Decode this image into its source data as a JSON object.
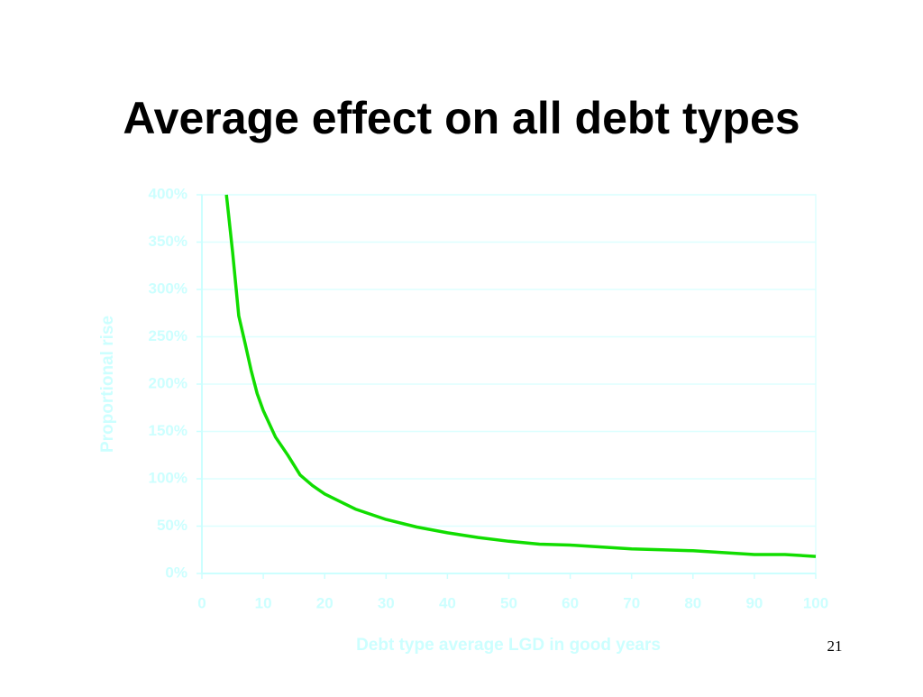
{
  "chart_data": {
    "type": "line",
    "title": "Average effect on all debt types",
    "x_label": "Debt type average LGD in good years",
    "y_label": "Proportional rise",
    "x": [
      4,
      5,
      6,
      7,
      8,
      9,
      10,
      12,
      14,
      16,
      18,
      20,
      25,
      30,
      35,
      40,
      45,
      50,
      55,
      60,
      65,
      70,
      75,
      80,
      85,
      90,
      95,
      100
    ],
    "values": [
      400,
      339,
      272,
      244,
      215,
      190,
      172,
      144,
      125,
      104,
      93,
      84,
      68,
      57,
      49,
      43,
      38,
      34,
      31,
      30,
      28,
      26,
      25,
      24,
      22,
      20,
      20,
      18
    ],
    "color": "#11dd00",
    "xlim": [
      0,
      100
    ],
    "xticks": [
      0,
      10,
      20,
      30,
      40,
      50,
      60,
      70,
      80,
      90,
      100
    ],
    "ylim": [
      0,
      400
    ],
    "yticks": [
      {
        "value": 0,
        "label": "0%"
      },
      {
        "value": 50,
        "label": "50%"
      },
      {
        "value": 100,
        "label": "100%"
      },
      {
        "value": 150,
        "label": "150%"
      },
      {
        "value": 200,
        "label": "200%"
      },
      {
        "value": 250,
        "label": "250%"
      },
      {
        "value": 300,
        "label": "300%"
      },
      {
        "value": 350,
        "label": "350%"
      },
      {
        "value": 400,
        "label": "400%"
      }
    ],
    "grid": true
  },
  "page_number": "21"
}
